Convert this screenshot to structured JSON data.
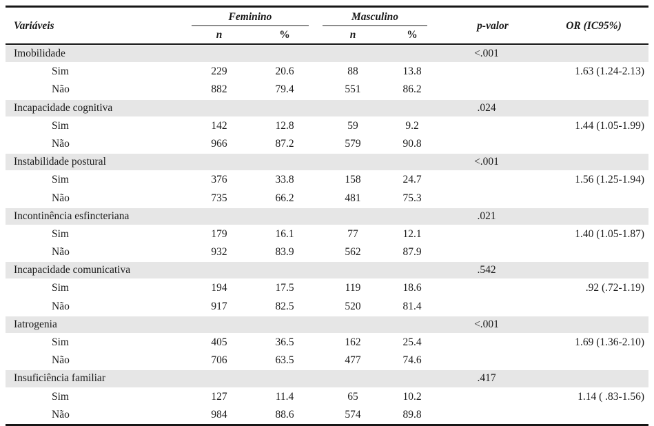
{
  "table": {
    "header": {
      "variables_label": "Variáveis",
      "group_feminino": "Feminino",
      "group_masculino": "Masculino",
      "sub_n_feminino": "n",
      "sub_pct_feminino": "%",
      "sub_n_masculino": "n",
      "sub_pct_masculino": "%",
      "p_label": "p-valor",
      "or_label": "OR (IC95%)"
    },
    "sections": [
      {
        "variable": "Imobilidade",
        "p_value": "<.001",
        "rows": [
          {
            "label": "Sim",
            "fem_n": "229",
            "fem_pct": "20.6",
            "masc_n": "88",
            "masc_pct": "13.8",
            "or": "1.63 (1.24-2.13)"
          },
          {
            "label": "Não",
            "fem_n": "882",
            "fem_pct": "79.4",
            "masc_n": "551",
            "masc_pct": "86.2",
            "or": ""
          }
        ]
      },
      {
        "variable": "Incapacidade cognitiva",
        "p_value": ".024",
        "rows": [
          {
            "label": "Sim",
            "fem_n": "142",
            "fem_pct": "12.8",
            "masc_n": "59",
            "masc_pct": "9.2",
            "or": "1.44 (1.05-1.99)"
          },
          {
            "label": "Não",
            "fem_n": "966",
            "fem_pct": "87.2",
            "masc_n": "579",
            "masc_pct": "90.8",
            "or": ""
          }
        ]
      },
      {
        "variable": "Instabilidade postural",
        "p_value": "<.001",
        "rows": [
          {
            "label": "Sim",
            "fem_n": "376",
            "fem_pct": "33.8",
            "masc_n": "158",
            "masc_pct": "24.7",
            "or": "1.56 (1.25-1.94)"
          },
          {
            "label": "Não",
            "fem_n": "735",
            "fem_pct": "66.2",
            "masc_n": "481",
            "masc_pct": "75.3",
            "or": ""
          }
        ]
      },
      {
        "variable": "Incontinência esfincteriana",
        "p_value": ".021",
        "rows": [
          {
            "label": "Sim",
            "fem_n": "179",
            "fem_pct": "16.1",
            "masc_n": "77",
            "masc_pct": "12.1",
            "or": "1.40 (1.05-1.87)"
          },
          {
            "label": "Não",
            "fem_n": "932",
            "fem_pct": "83.9",
            "masc_n": "562",
            "masc_pct": "87.9",
            "or": ""
          }
        ]
      },
      {
        "variable": "Incapacidade comunicativa",
        "p_value": ".542",
        "rows": [
          {
            "label": "Sim",
            "fem_n": "194",
            "fem_pct": "17.5",
            "masc_n": "119",
            "masc_pct": "18.6",
            "or": ".92 (.72-1.19)"
          },
          {
            "label": "Não",
            "fem_n": "917",
            "fem_pct": "82.5",
            "masc_n": "520",
            "masc_pct": "81.4",
            "or": ""
          }
        ]
      },
      {
        "variable": "Iatrogenia",
        "p_value": "<.001",
        "rows": [
          {
            "label": "Sim",
            "fem_n": "405",
            "fem_pct": "36.5",
            "masc_n": "162",
            "masc_pct": "25.4",
            "or": "1.69 (1.36-2.10)"
          },
          {
            "label": "Não",
            "fem_n": "706",
            "fem_pct": "63.5",
            "masc_n": "477",
            "masc_pct": "74.6",
            "or": ""
          }
        ]
      },
      {
        "variable": "Insuficiência familiar",
        "p_value": ".417",
        "rows": [
          {
            "label": "Sim",
            "fem_n": "127",
            "fem_pct": "11.4",
            "masc_n": "65",
            "masc_pct": "10.2",
            "or": "1.14 ( .83-1.56)"
          },
          {
            "label": "Não",
            "fem_n": "984",
            "fem_pct": "88.6",
            "masc_n": "574",
            "masc_pct": "89.8",
            "or": ""
          }
        ]
      }
    ]
  },
  "colors": {
    "band_background": "#e6e6e6",
    "text": "#1a1a1a",
    "rule": "#161616"
  }
}
